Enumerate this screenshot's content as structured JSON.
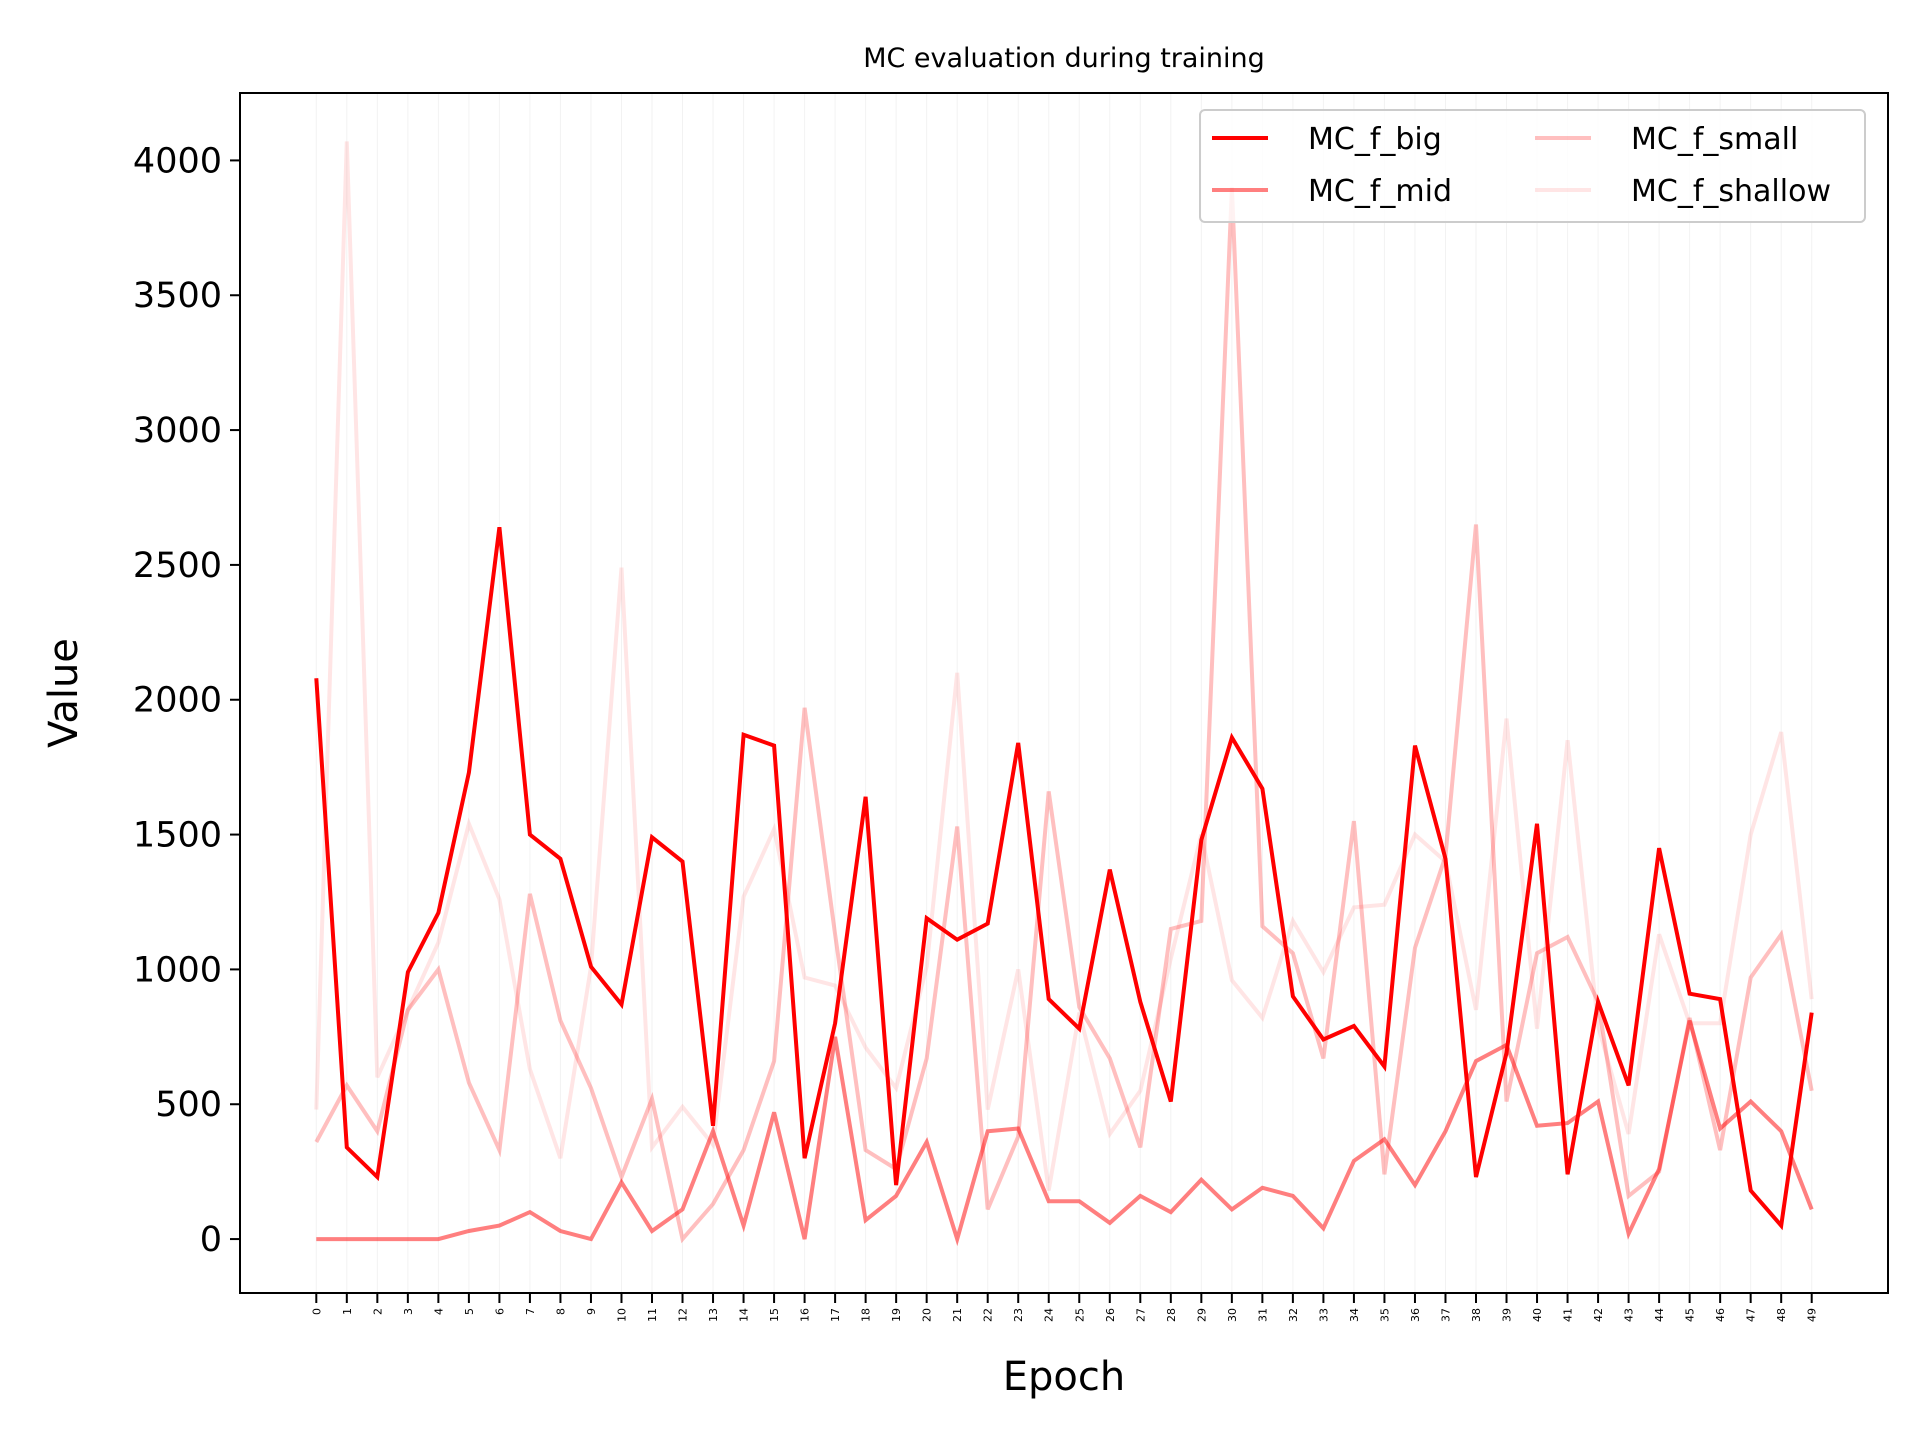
{
  "chart_data": {
    "type": "line",
    "title": "MC evaluation during training",
    "xlabel": "Epoch",
    "ylabel": "Value",
    "ylim": [
      -200,
      4250
    ],
    "xlim": [
      -2.5,
      51.5
    ],
    "yticks": [
      0,
      500,
      1000,
      1500,
      2000,
      2500,
      3000,
      3500,
      4000
    ],
    "x": [
      0,
      1,
      2,
      3,
      4,
      5,
      6,
      7,
      8,
      9,
      10,
      11,
      12,
      13,
      14,
      15,
      16,
      17,
      18,
      19,
      20,
      21,
      22,
      23,
      24,
      25,
      26,
      27,
      28,
      29,
      30,
      31,
      32,
      33,
      34,
      35,
      36,
      37,
      38,
      39,
      40,
      41,
      42,
      43,
      44,
      45,
      46,
      47,
      48,
      49
    ],
    "grid": "vertical",
    "legend": {
      "placement": "upper right",
      "columns": 2
    },
    "series": [
      {
        "name": "MC_f_big",
        "color": "#ff0000",
        "opacity": 1.0,
        "values": [
          2080,
          340,
          230,
          990,
          1210,
          1730,
          2640,
          1500,
          1410,
          1010,
          870,
          1490,
          1400,
          420,
          1870,
          1830,
          300,
          800,
          1640,
          200,
          1190,
          1110,
          1170,
          1840,
          890,
          780,
          1370,
          880,
          510,
          1480,
          1860,
          1670,
          900,
          740,
          790,
          640,
          1830,
          1410,
          230,
          690,
          1540,
          240,
          880,
          570,
          1450,
          910,
          890,
          180,
          50,
          840
        ]
      },
      {
        "name": "MC_f_mid",
        "color": "#ff0000",
        "opacity": 0.5,
        "values": [
          0,
          0,
          0,
          0,
          0,
          30,
          50,
          100,
          30,
          0,
          210,
          30,
          110,
          400,
          50,
          470,
          0,
          750,
          70,
          160,
          360,
          0,
          400,
          410,
          140,
          140,
          60,
          160,
          100,
          220,
          110,
          190,
          160,
          40,
          290,
          370,
          200,
          400,
          660,
          720,
          420,
          430,
          510,
          20,
          260,
          810,
          410,
          510,
          400,
          110
        ]
      },
      {
        "name": "MC_f_small",
        "color": "#ff0000",
        "opacity": 0.25,
        "values": [
          360,
          570,
          400,
          850,
          1000,
          580,
          330,
          1280,
          810,
          560,
          230,
          520,
          0,
          130,
          330,
          660,
          1970,
          1130,
          330,
          260,
          670,
          1530,
          110,
          380,
          1660,
          860,
          670,
          340,
          1150,
          1180,
          3900,
          1160,
          1060,
          670,
          1550,
          240,
          1080,
          1420,
          2650,
          510,
          1060,
          1120,
          880,
          160,
          250,
          820,
          330,
          970,
          1130,
          550
        ]
      },
      {
        "name": "MC_f_shallow",
        "color": "#ff0000",
        "opacity": 0.1,
        "values": [
          480,
          4070,
          600,
          850,
          1100,
          1540,
          1260,
          630,
          300,
          1010,
          2490,
          340,
          490,
          350,
          1270,
          1520,
          970,
          940,
          710,
          560,
          1010,
          2100,
          480,
          1000,
          180,
          840,
          390,
          550,
          1040,
          1500,
          960,
          820,
          1180,
          990,
          1230,
          1240,
          1500,
          1400,
          850,
          1930,
          780,
          1850,
          790,
          390,
          1130,
          800,
          800,
          1500,
          1880,
          890
        ]
      }
    ]
  }
}
